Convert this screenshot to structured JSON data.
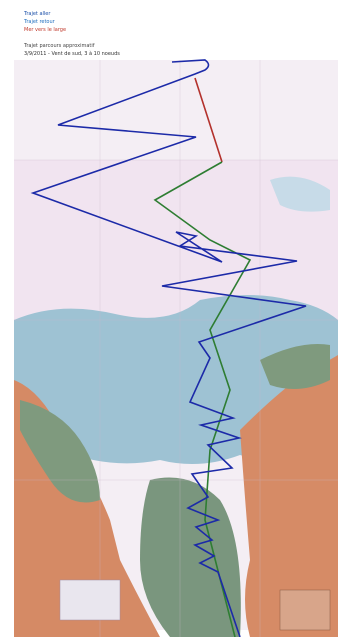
{
  "legend": {
    "aller": "Trajet aller",
    "retour": "Trajet retour",
    "rupture": "Mer vers le large",
    "note_line1": "Trajet parcours approximatif",
    "note_line2": "3/9/2011 - Vent de sud, 3 à 10 noeuds"
  },
  "colors": {
    "water": "#f3eef5",
    "shoal": "#8eb7c8",
    "land": "#d98a62",
    "green_land": "#7f9a7e",
    "route_blue": "#1c2aa8",
    "route_green": "#2e7d32",
    "route_red": "#b3312c"
  }
}
